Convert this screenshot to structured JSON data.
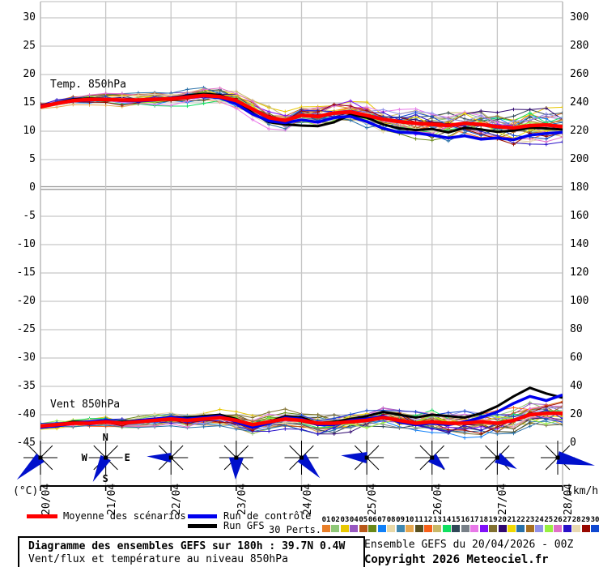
{
  "plot": {
    "temp_label": "Temp. 850hPa",
    "wind_label": "Vent 850hPa",
    "unit_left": "(°C)",
    "unit_right": "(km/h)",
    "compass": {
      "n": "N",
      "s": "S",
      "e": "E",
      "w": "W"
    }
  },
  "legend": {
    "mean_label": "Moyenne des scénarios",
    "control_label": "Run de contrôle",
    "gfs_label": "Run GFS",
    "perts_label": "30 Perts.",
    "mean_color": "#ff0000",
    "control_color": "#0000ee",
    "gfs_color": "#000000",
    "pert_numbers": [
      "01",
      "02",
      "03",
      "04",
      "05",
      "06",
      "07",
      "08",
      "09",
      "10",
      "11",
      "12",
      "13",
      "14",
      "15",
      "16",
      "17",
      "18",
      "19",
      "20",
      "21",
      "22",
      "23",
      "24",
      "25",
      "26",
      "27",
      "28",
      "29",
      "30"
    ],
    "pert_colors": [
      "#e87e28",
      "#8fc878",
      "#e8c800",
      "#9858c0",
      "#b85818",
      "#688818",
      "#1080f8",
      "#e8d8a8",
      "#4088b0",
      "#e8a850",
      "#585020",
      "#f86018",
      "#c8b868",
      "#10e060",
      "#304858",
      "#788088",
      "#e878e8",
      "#8010f8",
      "#807030",
      "#300870",
      "#f0d800",
      "#2870a8",
      "#a87020",
      "#9090e8",
      "#98f040",
      "#e070c8",
      "#2810c8",
      "#e8d8b0",
      "#980800",
      "#1048d0"
    ]
  },
  "footer": {
    "title": "Diagramme des ensembles GEFS sur 180h : 39.7N 0.4W",
    "subtitle": "Vent/flux et température au niveau 850hPa",
    "run_info": "Ensemble GEFS du 20/04/2026 - 00Z",
    "copyright": "Copyright 2026 Meteociel.fr"
  },
  "chart_data": {
    "type": "line",
    "title": "Diagramme des ensembles GEFS sur 180h : 39.7N 0.4W",
    "x_dates": [
      "20/04",
      "21/04",
      "22/04",
      "23/04",
      "24/04",
      "25/04",
      "26/04",
      "27/04",
      "28/04"
    ],
    "steps_per_day": 4,
    "grid": true,
    "yaxis_left": {
      "label": "(°C)",
      "min": -45,
      "max": 30,
      "tick_step": 5,
      "ticks": [
        30,
        25,
        20,
        15,
        10,
        5,
        0,
        -5,
        -10,
        -15,
        -20,
        -25,
        -30,
        -35,
        -40,
        -45
      ]
    },
    "yaxis_right": {
      "label": "(km/h)",
      "min": 0,
      "max": 300,
      "tick_step": 20,
      "ticks": [
        300,
        280,
        260,
        240,
        220,
        200,
        180,
        160,
        140,
        120,
        100,
        80,
        60,
        40,
        20,
        0
      ]
    },
    "temp_850hPa": {
      "mean": [
        14.3,
        14.9,
        15.4,
        15.6,
        15.6,
        15.5,
        15.5,
        15.6,
        15.7,
        16.0,
        16.3,
        16.1,
        15.4,
        13.9,
        12.4,
        11.9,
        12.8,
        12.6,
        13.2,
        13.4,
        12.8,
        12.1,
        11.7,
        11.4,
        11.2,
        11.0,
        11.4,
        11.2,
        10.8,
        10.6,
        11.0,
        11.1,
        10.8
      ],
      "control": [
        14.4,
        14.9,
        15.3,
        15.5,
        15.6,
        15.4,
        15.3,
        15.5,
        15.8,
        16.1,
        16.2,
        15.9,
        14.8,
        13.0,
        11.8,
        11.5,
        12.0,
        11.6,
        12.4,
        12.6,
        11.7,
        10.5,
        9.8,
        9.7,
        9.3,
        8.8,
        9.2,
        8.6,
        8.8,
        8.5,
        9.3,
        9.6,
        9.8
      ],
      "gfs": [
        14.2,
        15.0,
        15.6,
        15.8,
        15.7,
        15.5,
        15.4,
        15.6,
        15.9,
        16.3,
        16.6,
        16.4,
        15.2,
        13.2,
        11.6,
        11.2,
        11.0,
        10.9,
        11.6,
        12.9,
        12.4,
        11.2,
        10.5,
        10.2,
        10.4,
        9.8,
        10.6,
        10.3,
        9.9,
        10.1,
        10.6,
        10.5,
        10.3
      ]
    },
    "wind_850hPa_kmh": {
      "mean": [
        12,
        13,
        14,
        14,
        15,
        14,
        15,
        16,
        17,
        16,
        17,
        18,
        16,
        13,
        15,
        17,
        16,
        14,
        14,
        15,
        16,
        18,
        16,
        14,
        15,
        14,
        14,
        15,
        14,
        16,
        20,
        21,
        21
      ],
      "control": [
        11,
        12,
        14,
        15,
        16,
        14,
        16,
        17,
        18,
        17,
        18,
        19,
        15,
        11,
        14,
        18,
        17,
        13,
        13,
        16,
        17,
        19,
        15,
        13,
        14,
        13,
        15,
        18,
        22,
        28,
        33,
        30,
        34
      ],
      "gfs": [
        12,
        13,
        15,
        15,
        15,
        15,
        16,
        17,
        18,
        18,
        19,
        20,
        17,
        12,
        15,
        19,
        18,
        14,
        15,
        17,
        19,
        22,
        20,
        18,
        20,
        19,
        18,
        21,
        26,
        33,
        39,
        35,
        32
      ]
    },
    "wind_direction_arrows": [
      {
        "angle": 137,
        "len": 40,
        "hw": 7
      },
      {
        "angle": 118,
        "len": 34,
        "hw": 7
      },
      {
        "angle": 183,
        "len": 30,
        "hw": 6
      },
      {
        "angle": 92,
        "len": 27,
        "hw": 9
      },
      {
        "angle": 48,
        "len": 34,
        "hw": 7
      },
      {
        "angle": 185,
        "len": 32,
        "hw": 7
      },
      {
        "angle": 42,
        "len": 22,
        "hw": 7
      },
      {
        "angle": 30,
        "len": 28,
        "hw": 7
      },
      {
        "angle": 12,
        "len": 47,
        "hw": 8
      }
    ],
    "n_members": 30
  }
}
